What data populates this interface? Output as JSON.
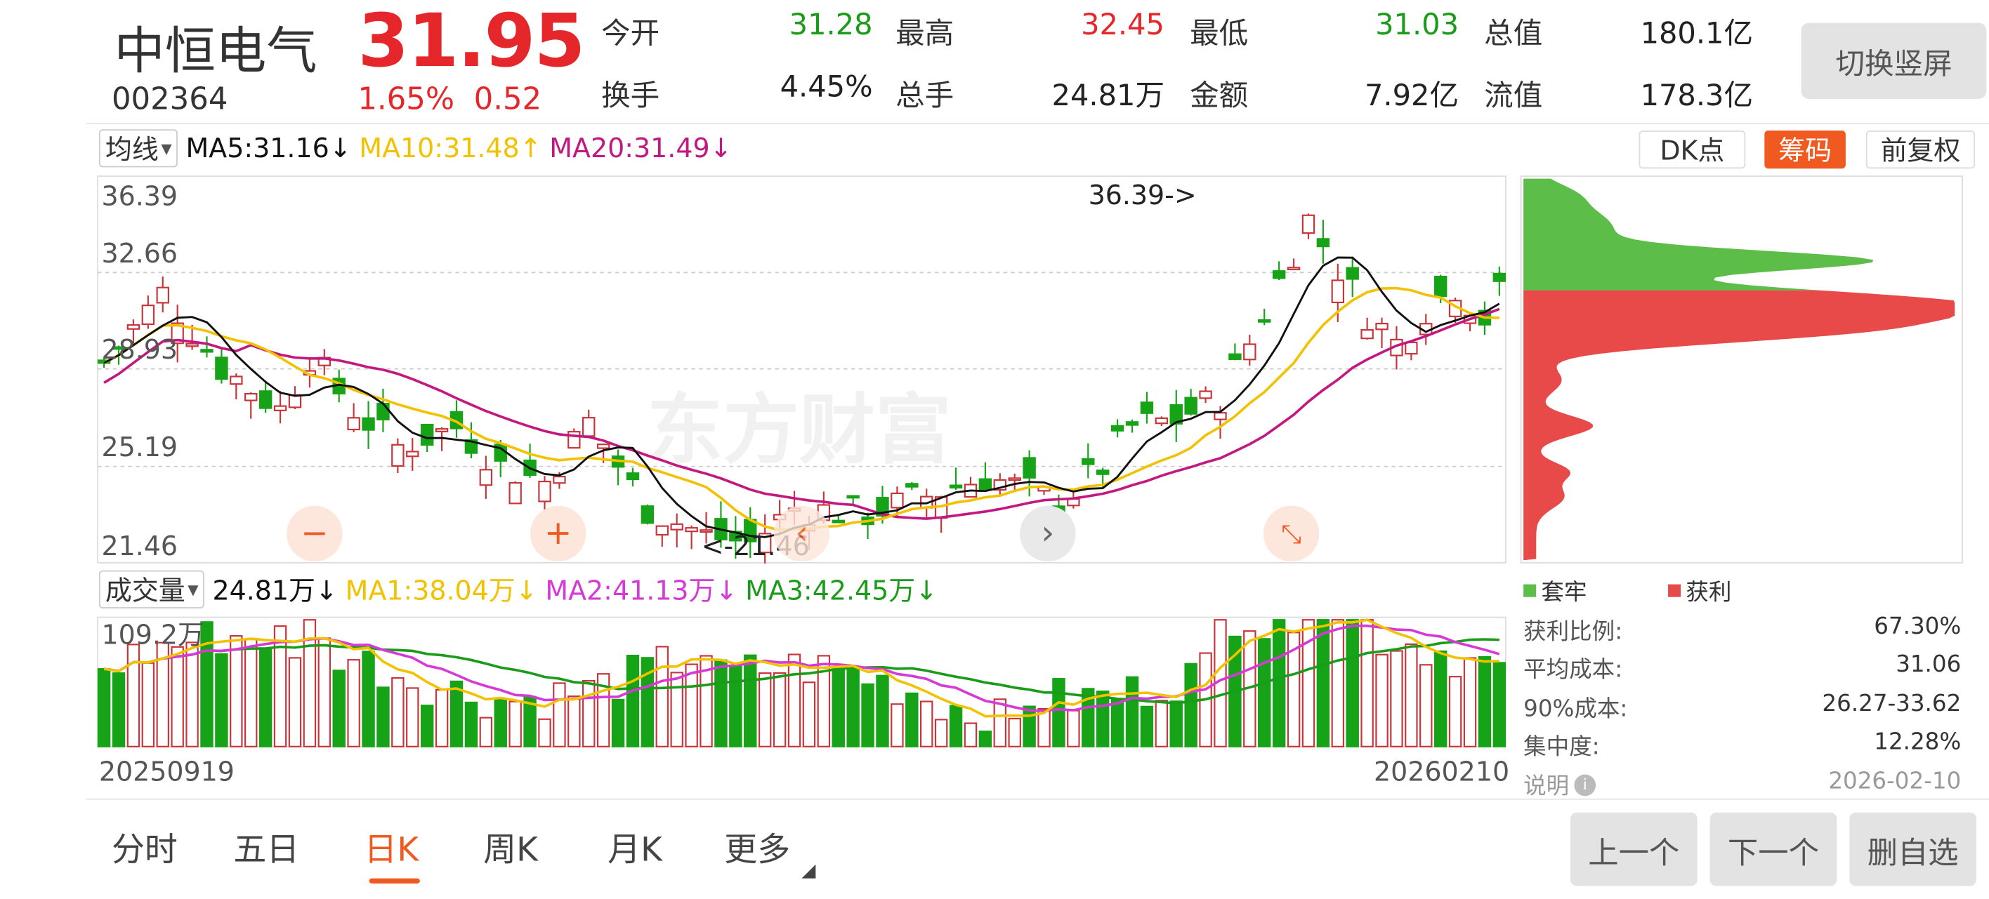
{
  "header": {
    "name": "中恒电气",
    "code": "002364",
    "price": "31.95",
    "change_pct": "1.65%",
    "change_amt": "0.52",
    "quotes": [
      {
        "label": "今开",
        "value": "31.28",
        "color": "green"
      },
      {
        "label": "最高",
        "value": "32.45",
        "color": "red"
      },
      {
        "label": "最低",
        "value": "31.03",
        "color": "green"
      },
      {
        "label": "总值",
        "value": "180.1亿",
        "color": "neutral"
      },
      {
        "label": "换手",
        "value": "4.45%",
        "color": "neutral"
      },
      {
        "label": "总手",
        "value": "24.81万",
        "color": "neutral"
      },
      {
        "label": "金额",
        "value": "7.92亿",
        "color": "neutral"
      },
      {
        "label": "流值",
        "value": "178.3亿",
        "color": "neutral"
      }
    ],
    "switch_button": "切换竖屏"
  },
  "ma_bar": {
    "selector": "均线",
    "ma5": "MA5:31.16",
    "ma10": "MA10:31.48",
    "ma20": "MA20:31.49",
    "arrow_ma5": "↓",
    "arrow_ma10": "↑",
    "arrow_ma20": "↓",
    "dk_button": "DK点",
    "chip_button": "筹码",
    "fq_button": "前复权"
  },
  "kchart": {
    "y_labels": [
      "36.39",
      "32.66",
      "28.93",
      "25.19",
      "21.46"
    ],
    "high_note": "36.39->",
    "low_note": "<-21.46",
    "watermark": "东方财富"
  },
  "volume_bar": {
    "selector": "成交量",
    "vol": "24.81万",
    "arrow_vol": "↓",
    "ma1": "MA1:38.04万",
    "arrow_ma1": "↓",
    "ma2": "MA2:41.13万",
    "arrow_ma2": "↓",
    "ma3": "MA3:42.45万",
    "arrow_ma3": "↓",
    "ymax": "109.2万",
    "date_start": "20250919",
    "date_end": "20260210"
  },
  "chip_panel": {
    "legend_green": "套牢",
    "legend_red": "获利",
    "rows": [
      {
        "label": "获利比例:",
        "value": "67.30%"
      },
      {
        "label": "平均成本:",
        "value": "31.06"
      },
      {
        "label": "90%成本:",
        "value": "26.27-33.62"
      },
      {
        "label": "集中度:",
        "value": "12.28%"
      }
    ],
    "note_label": "说明",
    "note_date": "2026-02-10"
  },
  "tabs": [
    "分时",
    "五日",
    "日K",
    "周K",
    "月K",
    "更多"
  ],
  "active_tab": "日K",
  "bottom_buttons": [
    "上一个",
    "下一个",
    "删自选"
  ],
  "colors": {
    "up": "#c8343a",
    "down": "#17a317",
    "accent": "#f05a20",
    "ma5": "#111111",
    "ma10": "#f2c200",
    "ma20": "#c2187f"
  }
}
